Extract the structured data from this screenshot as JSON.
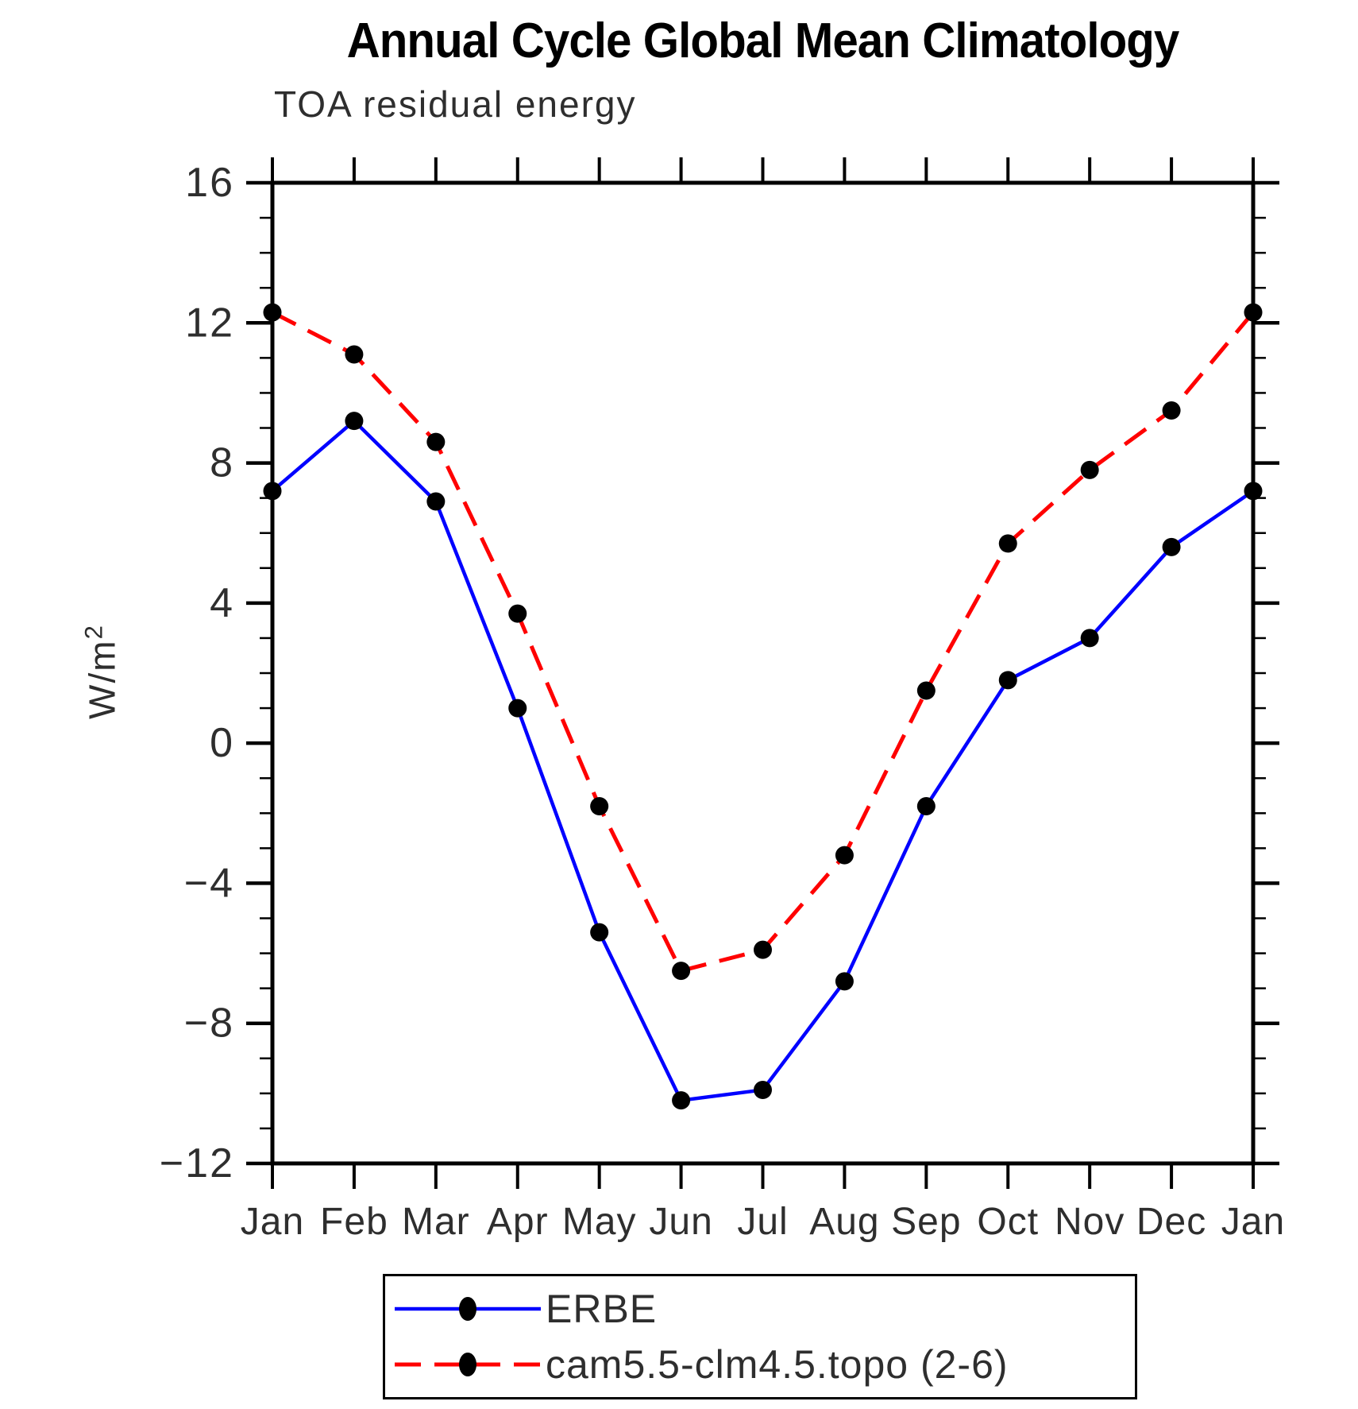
{
  "page": {
    "background": "#ffffff"
  },
  "chart_data": {
    "type": "line",
    "title": "Annual Cycle Global Mean Climatology",
    "subtitle": "TOA residual energy",
    "ylabel_base": "W/m",
    "ylabel_sup": "2",
    "ylabel_full": "W/m2",
    "categories": [
      "Jan",
      "Feb",
      "Mar",
      "Apr",
      "May",
      "Jun",
      "Jul",
      "Aug",
      "Sep",
      "Oct",
      "Nov",
      "Dec",
      "Jan"
    ],
    "ylim": [
      -12,
      16
    ],
    "ytick_major": [
      16,
      12,
      8,
      4,
      0,
      -4,
      -8,
      -12
    ],
    "ytick_minor_step": 1,
    "grid": false,
    "legend_position": "bottom",
    "axis_color": "#000000",
    "series": [
      {
        "name": "ERBE",
        "color": "#0000ff",
        "line_style": "solid",
        "marker": "filled-circle",
        "marker_color": "#000000",
        "values": [
          7.2,
          9.2,
          6.9,
          1.0,
          -5.4,
          -10.2,
          -9.9,
          -6.8,
          -1.8,
          1.8,
          3.0,
          5.6,
          7.2
        ]
      },
      {
        "name": "cam5.5-clm4.5.topo (2-6)",
        "color": "#ff0000",
        "line_style": "dashed",
        "marker": "filled-circle",
        "marker_color": "#000000",
        "values": [
          12.3,
          11.1,
          8.6,
          3.7,
          -1.8,
          -6.5,
          -5.9,
          -3.2,
          1.5,
          5.7,
          7.8,
          9.5,
          12.3
        ]
      }
    ]
  }
}
